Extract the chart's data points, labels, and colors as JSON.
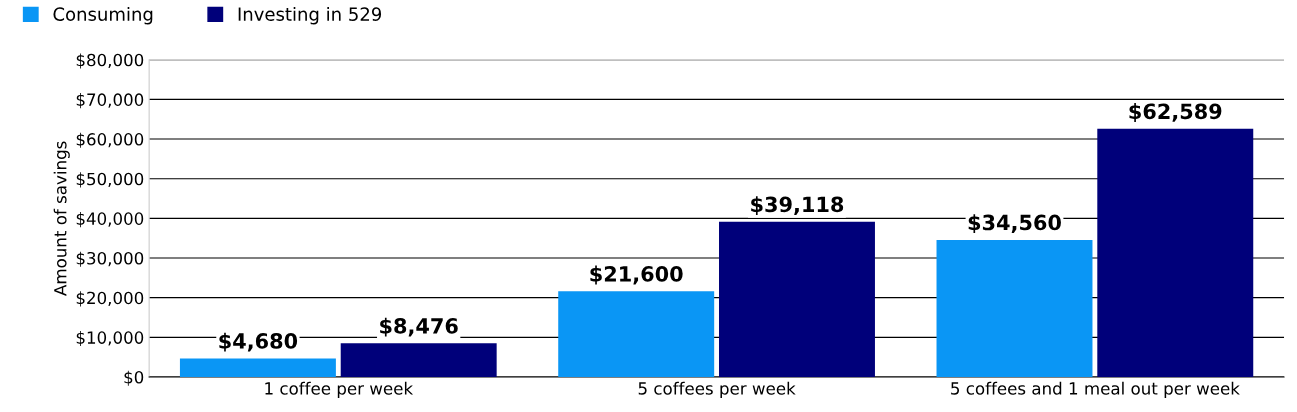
{
  "chart_data": {
    "type": "bar",
    "ylabel": "Amount of savings",
    "categories": [
      "1 coffee per week",
      "5 coffees per week",
      "5 coffees and 1 meal out per week"
    ],
    "series": [
      {
        "name": "Consuming",
        "color": "#0a96f5",
        "values": [
          4680,
          21600,
          34560
        ],
        "value_labels": [
          "$4,680",
          "$21,600",
          "$34,560"
        ]
      },
      {
        "name": "Investing in 529",
        "color": "#00007a",
        "values": [
          8476,
          39118,
          62589
        ],
        "value_labels": [
          "$8,476",
          "$39,118",
          "$62,589"
        ]
      }
    ],
    "ylim": [
      0,
      80000
    ],
    "yticks": [
      {
        "value": 0,
        "label": "$0"
      },
      {
        "value": 10000,
        "label": "$10,000"
      },
      {
        "value": 20000,
        "label": "$20,000"
      },
      {
        "value": 30000,
        "label": "$30,000"
      },
      {
        "value": 40000,
        "label": "$40,000"
      },
      {
        "value": 50000,
        "label": "$50,000"
      },
      {
        "value": 60000,
        "label": "$60,000"
      },
      {
        "value": 70000,
        "label": "$70,000"
      },
      {
        "value": 80000,
        "label": "$80,000"
      }
    ],
    "grid": "y",
    "legend": "top left"
  }
}
